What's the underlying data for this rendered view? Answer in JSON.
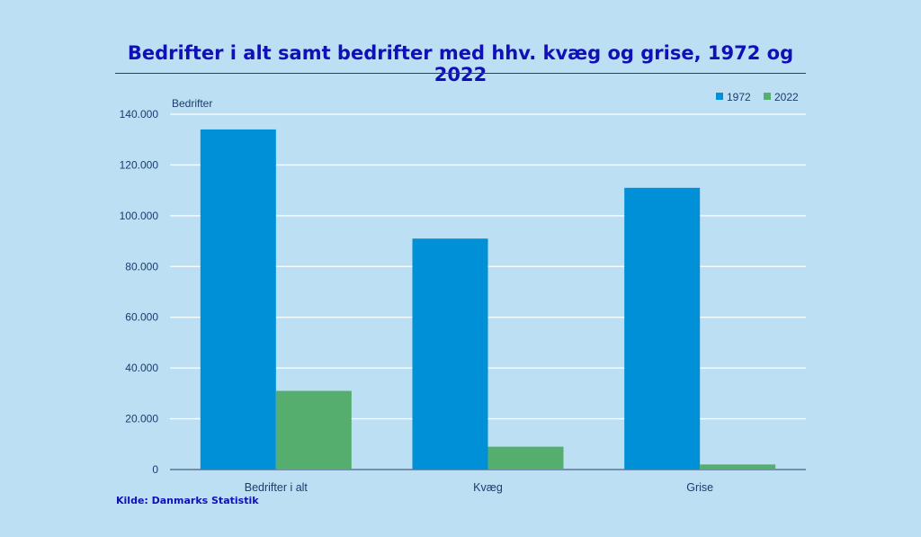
{
  "chart_data": {
    "type": "bar",
    "title": "Bedrifter i alt samt bedrifter med hhv. kvæg og grise, 1972 og 2022",
    "ylabel": "Bedrifter",
    "xlabel": "",
    "categories": [
      "Bedrifter i alt",
      "Kvæg",
      "Grise"
    ],
    "series": [
      {
        "name": "1972",
        "color": "#0090d8",
        "values": [
          134000,
          91000,
          111000
        ]
      },
      {
        "name": "2022",
        "color": "#55ad6e",
        "values": [
          31000,
          9000,
          2000
        ]
      }
    ],
    "ylim": [
      0,
      140000
    ],
    "yticks": [
      {
        "value": 0,
        "label": "0"
      },
      {
        "value": 20000,
        "label": "20.000"
      },
      {
        "value": 40000,
        "label": "40.000"
      },
      {
        "value": 60000,
        "label": "60.000"
      },
      {
        "value": 80000,
        "label": "80.000"
      },
      {
        "value": 100000,
        "label": "100.000"
      },
      {
        "value": 120000,
        "label": "120.000"
      },
      {
        "value": 140000,
        "label": "140.000"
      }
    ],
    "grid": true,
    "legend_position": "top-right"
  },
  "source": "Kilde: Danmarks Statistik"
}
